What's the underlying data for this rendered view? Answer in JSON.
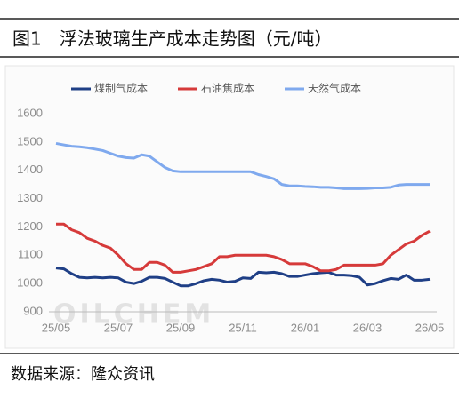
{
  "header": "图1　浮法玻璃生产成本走势图（元/吨）",
  "source": "数据来源：隆众资讯",
  "chart_data": {
    "type": "line",
    "watermark": "OILCHEM",
    "categories": [
      "25/05",
      null,
      null,
      null,
      null,
      null,
      null,
      null,
      "25/07",
      null,
      null,
      null,
      null,
      null,
      null,
      null,
      "25/09",
      null,
      null,
      null,
      null,
      null,
      null,
      null,
      "25/11",
      null,
      null,
      null,
      null,
      null,
      null,
      null,
      "26/01",
      null,
      null,
      null,
      null,
      null,
      null,
      null,
      "26/03",
      null,
      null,
      null,
      null,
      null,
      null,
      null,
      "26/05"
    ],
    "ylim": [
      900,
      1600
    ],
    "yticks": [
      900,
      1000,
      1100,
      1200,
      1300,
      1400,
      1500,
      1600
    ],
    "series": [
      {
        "name": "煤制气成本",
        "color": "#1f3f86",
        "values": [
          1055,
          1052,
          1035,
          1022,
          1020,
          1022,
          1020,
          1022,
          1020,
          1005,
          1000,
          1008,
          1022,
          1022,
          1018,
          1005,
          992,
          992,
          1000,
          1010,
          1015,
          1012,
          1005,
          1008,
          1020,
          1018,
          1040,
          1038,
          1040,
          1035,
          1025,
          1025,
          1030,
          1035,
          1038,
          1040,
          1030,
          1030,
          1028,
          1022,
          995,
          1000,
          1010,
          1018,
          1015,
          1030,
          1012,
          1012,
          1015
        ]
      },
      {
        "name": "石油焦成本",
        "color": "#d63a3a",
        "values": [
          1210,
          1210,
          1190,
          1180,
          1160,
          1150,
          1135,
          1125,
          1100,
          1070,
          1050,
          1050,
          1075,
          1075,
          1065,
          1040,
          1040,
          1045,
          1050,
          1060,
          1070,
          1095,
          1095,
          1100,
          1100,
          1100,
          1100,
          1100,
          1095,
          1085,
          1070,
          1070,
          1070,
          1060,
          1045,
          1045,
          1050,
          1065,
          1065,
          1065,
          1065,
          1065,
          1070,
          1100,
          1120,
          1140,
          1150,
          1170,
          1185
        ]
      },
      {
        "name": "天然气成本",
        "color": "#7fa9ee",
        "values": [
          1495,
          1490,
          1485,
          1483,
          1480,
          1475,
          1470,
          1460,
          1450,
          1445,
          1443,
          1455,
          1450,
          1430,
          1410,
          1398,
          1395,
          1395,
          1395,
          1395,
          1395,
          1395,
          1395,
          1395,
          1395,
          1395,
          1385,
          1378,
          1370,
          1350,
          1345,
          1345,
          1343,
          1342,
          1340,
          1340,
          1338,
          1335,
          1335,
          1335,
          1336,
          1338,
          1338,
          1340,
          1348,
          1350,
          1350,
          1350,
          1350
        ]
      }
    ]
  }
}
